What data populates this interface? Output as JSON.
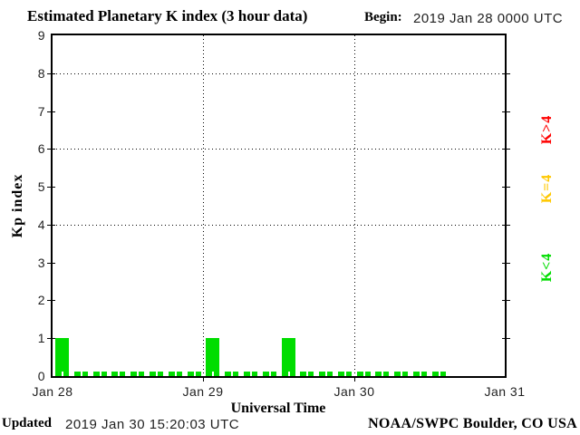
{
  "title": "Estimated Planetary K index (3 hour data)",
  "begin": {
    "label": "Begin:",
    "value": "2019 Jan 28 0000 UTC"
  },
  "footer": {
    "updated_label": "Updated",
    "updated_value": "2019 Jan 30 15:20:03 UTC",
    "credit": "NOAA/SWPC Boulder, CO USA"
  },
  "legend": [
    {
      "label": "K>4",
      "color": "#FF0000"
    },
    {
      "label": "K=4",
      "color": "#FFC800"
    },
    {
      "label": "K<4",
      "color": "#00DD00"
    }
  ],
  "chart_data": {
    "type": "bar",
    "title": "Estimated Planetary K index (3 hour data)",
    "xlabel": "Universal Time",
    "ylabel": "Kp index",
    "ylim": [
      0,
      9
    ],
    "yticks": [
      0,
      1,
      2,
      3,
      4,
      5,
      6,
      7,
      8,
      9
    ],
    "xticks": [
      "Jan 28",
      "Jan 29",
      "Jan 30",
      "Jan 31"
    ],
    "grid_y_dotted_at": [
      4,
      6,
      8
    ],
    "grid_x_dotted_at": [
      "Jan 29",
      "Jan 30"
    ],
    "interval_hours": 3,
    "begin_utc": "2019 Jan 28 0000 UTC",
    "values": [
      1,
      0,
      0,
      0,
      0,
      0,
      0,
      0,
      1,
      0,
      0,
      0,
      1,
      0,
      0,
      0,
      0,
      0,
      0,
      0,
      0
    ],
    "slots_per_day": 8,
    "days_span": 3,
    "colors": {
      "k_below_4": "#00DD00",
      "k_equal_4": "#FFC800",
      "k_above_4": "#FF0000",
      "axis": "#000000",
      "background": "#FFFFFF"
    },
    "legend_position": "right",
    "grid": "dotted"
  }
}
